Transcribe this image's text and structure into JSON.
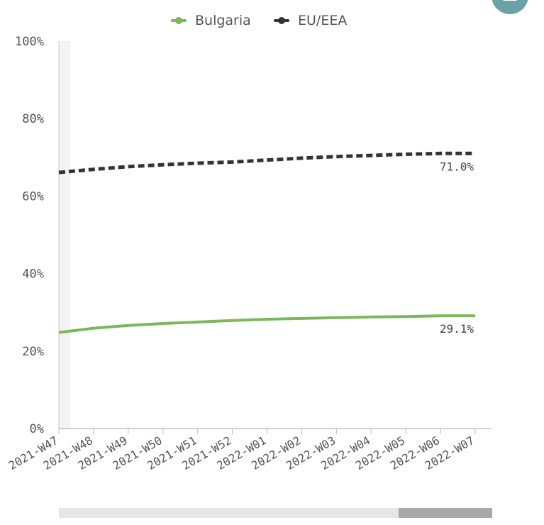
{
  "menu": {
    "icon": "menu-icon",
    "color": "#6aa2a6"
  },
  "legend": [
    {
      "label": "Bulgaria",
      "color": "#7cb75b"
    },
    {
      "label": "EU/EEA",
      "color": "#333333"
    }
  ],
  "chart_data": {
    "type": "line",
    "title": "",
    "xlabel": "",
    "ylabel": "",
    "ylim": [
      0,
      100
    ],
    "ytick_labels": [
      "0%",
      "20%",
      "40%",
      "60%",
      "80%",
      "100%"
    ],
    "ytick_values": [
      0,
      20,
      40,
      60,
      80,
      100
    ],
    "grid": false,
    "legend_position": "top",
    "categories": [
      "2021-W47",
      "2021-W48",
      "2021-W49",
      "2021-W50",
      "2021-W51",
      "2021-W52",
      "2022-W01",
      "2022-W02",
      "2022-W03",
      "2022-W04",
      "2022-W05",
      "2022-W06",
      "2022-W07"
    ],
    "series": [
      {
        "name": "Bulgaria",
        "style": "solid",
        "color": "#7cb75b",
        "values": [
          24.8,
          25.9,
          26.6,
          27.1,
          27.5,
          27.9,
          28.2,
          28.4,
          28.6,
          28.8,
          28.9,
          29.1,
          29.1
        ],
        "end_label": "29.1%"
      },
      {
        "name": "EU/EEA",
        "style": "dashed",
        "color": "#333333",
        "values": [
          66.1,
          66.9,
          67.6,
          68.1,
          68.5,
          68.8,
          69.3,
          69.8,
          70.2,
          70.5,
          70.8,
          71.0,
          71.0
        ],
        "end_label": "71.0%"
      }
    ],
    "scrollbar": {
      "visible_fraction_start": 0.786,
      "visible_fraction_end": 1.0
    }
  }
}
